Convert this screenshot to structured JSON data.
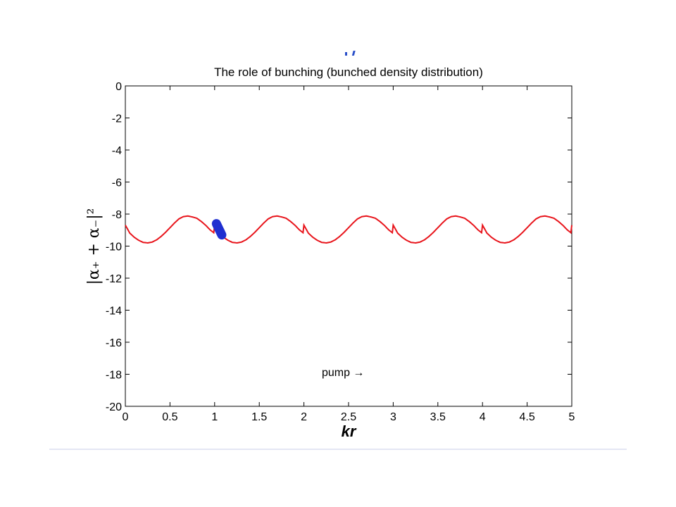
{
  "chart_data": {
    "type": "line",
    "title": "The role of bunching (bunched density distribution)",
    "xlabel": "kr",
    "ylabel": "|α₊ + α₋|²",
    "xlim": [
      0,
      5
    ],
    "ylim": [
      -20,
      0
    ],
    "xticks": [
      "0",
      "0.5",
      "1",
      "1.5",
      "2",
      "2.5",
      "3",
      "3.5",
      "4",
      "4.5",
      "5"
    ],
    "yticks": [
      "0",
      "-2",
      "-4",
      "-6",
      "-8",
      "-10",
      "-12",
      "-14",
      "-16",
      "-18",
      "-20"
    ],
    "grid": false,
    "series": [
      {
        "color": "#e8141b",
        "function": "sinusoid",
        "mean": -8.95,
        "amplitude": 0.85,
        "period": 1.0,
        "x": [
          0,
          0.05,
          0.1,
          0.15,
          0.2,
          0.25,
          0.3,
          0.35,
          0.4,
          0.45,
          0.5,
          0.55,
          0.6,
          0.65,
          0.7,
          0.75,
          0.8,
          0.85,
          0.9,
          0.95,
          1.0
        ],
        "y": [
          -8.69,
          -9.19,
          -9.45,
          -9.64,
          -9.77,
          -9.8,
          -9.75,
          -9.61,
          -9.4,
          -9.14,
          -8.85,
          -8.56,
          -8.3,
          -8.16,
          -8.12,
          -8.18,
          -8.26,
          -8.46,
          -8.7,
          -8.99,
          -9.21
        ]
      }
    ],
    "marker": {
      "color": "#1f2fd0",
      "shape": "elongated blob",
      "x_range": [
        1.0,
        1.1
      ],
      "y_range": [
        -8.6,
        -9.3
      ]
    },
    "annotations": [
      {
        "text": "pump →",
        "x": 2.2,
        "y": -18.1
      }
    ]
  },
  "decor": {
    "footer_line_color": "#c8cce8"
  }
}
